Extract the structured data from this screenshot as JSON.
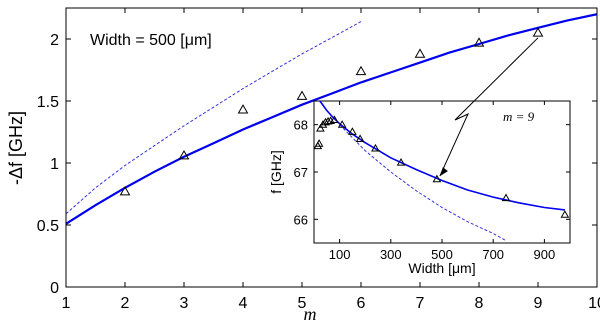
{
  "chart_data": [
    {
      "type": "line",
      "annotation": "Width = 500 [μm]",
      "xlabel": "m",
      "ylabel": "-Δf [GHz]",
      "xlim": [
        1,
        10
      ],
      "ylim": [
        0,
        2.25
      ],
      "xticks": [
        1,
        2,
        3,
        4,
        5,
        6,
        7,
        8,
        9,
        10
      ],
      "yticks": [
        0,
        0.5,
        1,
        1.5,
        2
      ],
      "ytick_labels": [
        "0",
        "0.5",
        "1",
        "1.5",
        "2"
      ],
      "grid": false,
      "series": [
        {
          "style": "solid-line",
          "color": "#0000ee",
          "x": [
            1,
            1.5,
            2,
            2.5,
            3,
            3.5,
            4,
            4.5,
            5,
            5.5,
            6,
            6.5,
            7,
            7.5,
            8,
            8.5,
            9,
            9.5,
            10
          ],
          "y": [
            0.51,
            0.66,
            0.8,
            0.93,
            1.05,
            1.16,
            1.27,
            1.37,
            1.47,
            1.56,
            1.65,
            1.73,
            1.81,
            1.89,
            1.96,
            2.03,
            2.09,
            2.15,
            2.2
          ]
        },
        {
          "style": "dashed-line",
          "color": "#3333dd",
          "x": [
            1,
            1.5,
            2,
            2.5,
            3,
            3.5,
            4,
            4.5,
            5,
            5.5,
            6
          ],
          "y": [
            0.59,
            0.8,
            0.98,
            1.14,
            1.3,
            1.45,
            1.6,
            1.74,
            1.88,
            2.01,
            2.14
          ]
        },
        {
          "style": "triangle-markers",
          "color": "#000000",
          "x": [
            2,
            3,
            4,
            5,
            6,
            7,
            8,
            9
          ],
          "y": [
            0.77,
            1.06,
            1.43,
            1.54,
            1.74,
            1.88,
            1.97,
            2.05
          ]
        }
      ]
    },
    {
      "type": "line",
      "inset": true,
      "annotation": "m = 9",
      "xlabel": "Width [μm]",
      "ylabel": "f [GHz]",
      "xlim": [
        0,
        1000
      ],
      "ylim": [
        65.5,
        68.5
      ],
      "xticks": [
        100,
        300,
        500,
        700,
        900
      ],
      "yticks": [
        66,
        67,
        68
      ],
      "grid": false,
      "series": [
        {
          "style": "solid-line",
          "color": "#0000ee",
          "x": [
            15,
            30,
            50,
            75,
            100,
            150,
            200,
            300,
            400,
            500,
            600,
            700,
            800,
            900,
            980
          ],
          "y": [
            68.55,
            68.45,
            68.3,
            68.15,
            68.02,
            67.8,
            67.62,
            67.3,
            67.05,
            66.82,
            66.62,
            66.47,
            66.35,
            66.25,
            66.2
          ]
        },
        {
          "style": "dashed-line",
          "color": "#3333dd",
          "x": [
            100,
            200,
            300,
            400,
            500,
            600,
            700,
            750
          ],
          "y": [
            68.0,
            67.45,
            67.0,
            66.6,
            66.25,
            65.95,
            65.7,
            65.55
          ]
        },
        {
          "style": "triangle-markers",
          "color": "#000000",
          "x": [
            15,
            20,
            25,
            35,
            45,
            55,
            65,
            80,
            110,
            150,
            180,
            240,
            340,
            480,
            750,
            980
          ],
          "y": [
            67.55,
            67.6,
            67.92,
            68.0,
            68.05,
            68.07,
            68.08,
            68.1,
            68.0,
            67.85,
            67.7,
            67.5,
            67.2,
            66.85,
            66.45,
            66.1
          ]
        }
      ]
    }
  ]
}
